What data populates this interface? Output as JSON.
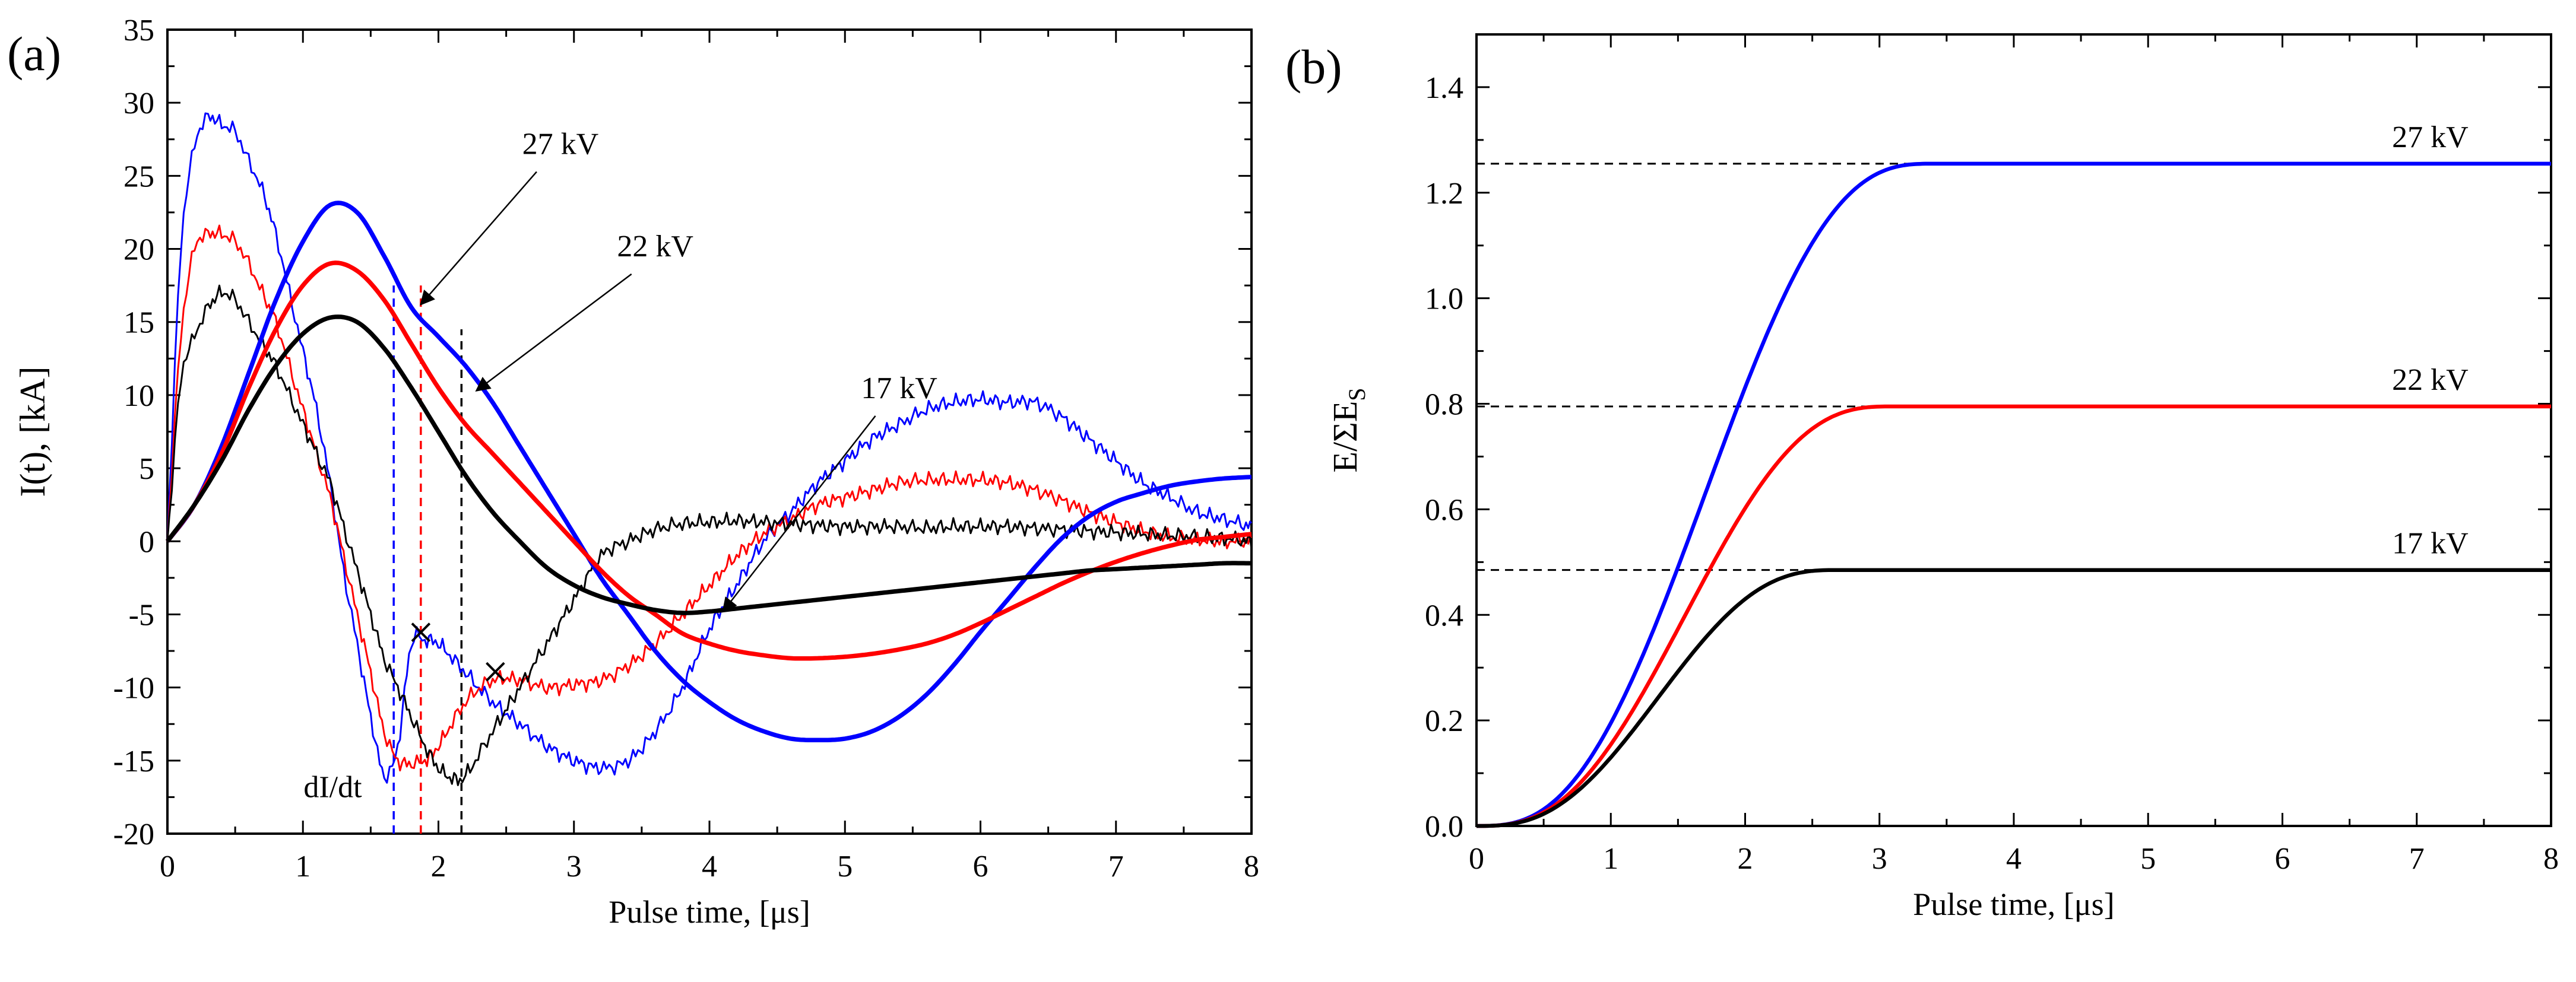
{
  "chart_data": [
    {
      "panel_label": "(a)",
      "type": "line",
      "xlabel": "Pulse time, [μs]",
      "ylabel": "I(t), [kA]",
      "xlim": [
        0,
        8
      ],
      "ylim": [
        -20,
        35
      ],
      "xticks": [
        0,
        1,
        2,
        3,
        4,
        5,
        6,
        7,
        8
      ],
      "yticks": [
        -20,
        -15,
        -10,
        -5,
        0,
        5,
        10,
        15,
        20,
        25,
        30,
        35
      ],
      "series": [
        {
          "name": "27 kV",
          "color": "#0000ff",
          "style": "thick",
          "x": [
            0,
            0.2,
            0.4,
            0.6,
            0.8,
            1.0,
            1.2,
            1.4,
            1.6,
            1.8,
            2.0,
            2.2,
            2.4,
            2.6,
            2.8,
            3.0,
            3.2,
            3.4,
            3.6,
            3.8,
            4.0,
            4.2,
            4.4,
            4.6,
            4.8,
            5.0,
            5.2,
            5.4,
            5.6,
            5.8,
            6.0,
            6.2,
            6.4,
            6.6,
            6.8,
            7.0,
            7.2,
            7.4,
            7.6,
            7.8,
            8.0
          ],
          "y": [
            0,
            2.5,
            6.5,
            11.5,
            16.5,
            20.5,
            23,
            22.5,
            19.5,
            16,
            14,
            12,
            9.5,
            6.5,
            3.5,
            0.5,
            -2.5,
            -5,
            -7.5,
            -9.5,
            -11,
            -12.2,
            -13,
            -13.5,
            -13.6,
            -13.5,
            -13,
            -12,
            -10.5,
            -8.5,
            -6.2,
            -4,
            -1.8,
            0.2,
            1.7,
            2.7,
            3.3,
            3.8,
            4.1,
            4.3,
            4.4
          ]
        },
        {
          "name": "22 kV",
          "color": "#ff0000",
          "style": "thick",
          "x": [
            0,
            0.2,
            0.4,
            0.6,
            0.8,
            1.0,
            1.2,
            1.4,
            1.6,
            1.8,
            2.0,
            2.2,
            2.4,
            2.6,
            2.8,
            3.0,
            3.2,
            3.4,
            3.6,
            3.8,
            4.0,
            4.2,
            4.4,
            4.6,
            4.8,
            5.0,
            5.2,
            5.4,
            5.6,
            5.8,
            6.0,
            6.2,
            6.4,
            6.6,
            6.8,
            7.0,
            7.2,
            7.4,
            7.6,
            7.8,
            8.0
          ],
          "y": [
            0,
            2.5,
            6,
            10.5,
            14.5,
            17.5,
            19,
            18.5,
            16.5,
            13.5,
            10.5,
            8,
            6,
            4,
            2,
            0,
            -2,
            -3.7,
            -5,
            -6.3,
            -7,
            -7.5,
            -7.8,
            -8,
            -8,
            -7.9,
            -7.7,
            -7.4,
            -7,
            -6.4,
            -5.6,
            -4.7,
            -3.8,
            -2.9,
            -2.1,
            -1.4,
            -0.8,
            -0.3,
            0.1,
            0.3,
            0.5
          ]
        },
        {
          "name": "17 kV",
          "color": "#000000",
          "style": "thick",
          "x": [
            0,
            0.2,
            0.4,
            0.6,
            0.8,
            1.0,
            1.2,
            1.4,
            1.6,
            1.8,
            2.0,
            2.2,
            2.4,
            2.6,
            2.8,
            3.0,
            3.2,
            3.4,
            3.6,
            3.8,
            4.0,
            4.2,
            4.4,
            4.6,
            4.8,
            5.0,
            5.2,
            5.4,
            5.6,
            5.8,
            6.0,
            6.2,
            6.4,
            6.6,
            6.8,
            7.0,
            7.2,
            7.4,
            7.6,
            7.8,
            8.0
          ],
          "y": [
            0,
            2.5,
            5.5,
            9,
            12,
            14.2,
            15.3,
            15,
            13.2,
            10.5,
            7.5,
            4.5,
            2,
            0,
            -1.8,
            -3,
            -3.8,
            -4.3,
            -4.7,
            -4.9,
            -4.8,
            -4.6,
            -4.4,
            -4.2,
            -4,
            -3.8,
            -3.6,
            -3.4,
            -3.2,
            -3,
            -2.8,
            -2.6,
            -2.4,
            -2.2,
            -2,
            -1.9,
            -1.8,
            -1.7,
            -1.6,
            -1.5,
            -1.5
          ]
        },
        {
          "name": "27 kV (dI/dt)",
          "color": "#0000ff",
          "style": "thin",
          "x": [
            0,
            0.1,
            0.2,
            0.3,
            0.4,
            0.5,
            0.6,
            0.7,
            0.8,
            0.9,
            1.0,
            1.1,
            1.2,
            1.3,
            1.4,
            1.5,
            1.6,
            1.7,
            1.8,
            1.9,
            2.0,
            2.2,
            2.4,
            2.6,
            2.8,
            3.0,
            3.2,
            3.4,
            3.6,
            3.8,
            4.0,
            4.2,
            4.4,
            4.6,
            4.8,
            5.0,
            5.2,
            5.4,
            5.6,
            5.8,
            6.0,
            6.2,
            6.4,
            6.6,
            6.8,
            7.0,
            7.2,
            7.4,
            7.6,
            7.8,
            8.0
          ],
          "y": [
            0,
            20,
            27,
            29,
            28.5,
            28,
            26,
            24,
            21,
            17,
            13,
            9,
            4,
            -2,
            -7,
            -12,
            -16,
            -14,
            -7,
            -6.8,
            -7,
            -9,
            -11,
            -12.5,
            -14,
            -15,
            -15.5,
            -15,
            -13,
            -10,
            -6,
            -3,
            0,
            2,
            4,
            5.5,
            7,
            8,
            9,
            9.5,
            9.7,
            9.5,
            9.5,
            8.5,
            7,
            5.5,
            4,
            3,
            2,
            1.5,
            1
          ]
        },
        {
          "name": "22 kV (dI/dt)",
          "color": "#ff0000",
          "style": "thin",
          "x": [
            0,
            0.1,
            0.2,
            0.3,
            0.4,
            0.5,
            0.6,
            0.7,
            0.8,
            0.9,
            1.0,
            1.1,
            1.2,
            1.3,
            1.4,
            1.5,
            1.6,
            1.7,
            1.8,
            1.9,
            2.0,
            2.2,
            2.4,
            2.6,
            2.8,
            3.0,
            3.2,
            3.4,
            3.6,
            3.8,
            4.0,
            4.2,
            4.4,
            4.6,
            4.8,
            5.0,
            5.2,
            5.4,
            5.6,
            5.8,
            6.0,
            6.2,
            6.4,
            6.6,
            6.8,
            7.0,
            7.2,
            7.4,
            7.6,
            7.8,
            8.0
          ],
          "y": [
            0,
            14,
            20,
            21,
            21,
            20.5,
            19,
            17,
            15,
            12,
            9,
            6,
            3,
            -1,
            -5,
            -9,
            -13,
            -15,
            -15.2,
            -15,
            -14,
            -11,
            -9.5,
            -9.5,
            -10,
            -9.8,
            -9.5,
            -8.5,
            -7,
            -5,
            -3,
            -1,
            0.5,
            1.5,
            2.5,
            3,
            3.5,
            4,
            4.2,
            4.2,
            4.2,
            4,
            3.5,
            2.8,
            2,
            1.3,
            0.7,
            0.3,
            0.1,
            0,
            0
          ]
        },
        {
          "name": "17 kV (dI/dt)",
          "color": "#000000",
          "style": "thin",
          "x": [
            0,
            0.1,
            0.2,
            0.3,
            0.4,
            0.5,
            0.6,
            0.7,
            0.8,
            0.9,
            1.0,
            1.1,
            1.2,
            1.3,
            1.4,
            1.5,
            1.6,
            1.7,
            1.8,
            1.9,
            2.0,
            2.1,
            2.2,
            2.4,
            2.6,
            2.8,
            3.0,
            3.2,
            3.4,
            3.6,
            3.8,
            4.0,
            4.2,
            4.4,
            4.6,
            4.8,
            5.0,
            5.2,
            5.4,
            5.6,
            5.8,
            6.0,
            6.2,
            6.4,
            6.6,
            6.8,
            7.0,
            7.2,
            7.4,
            7.6,
            7.8,
            8.0
          ],
          "y": [
            0,
            11,
            14,
            16,
            17,
            16.5,
            15,
            13.5,
            12,
            10,
            8,
            6,
            4,
            1,
            -2,
            -5,
            -8,
            -10,
            -12,
            -14,
            -15.5,
            -16.2,
            -16,
            -13,
            -10,
            -7,
            -4,
            -1,
            0,
            0.8,
            1.2,
            1.3,
            1.4,
            1.3,
            1.2,
            1.1,
            1,
            1,
            1,
            0.9,
            1,
            1,
            1,
            0.9,
            0.8,
            0.7,
            0.6,
            0.5,
            0.4,
            0.3,
            0.2,
            0
          ]
        }
      ],
      "vlines": [
        {
          "x": 1.67,
          "y_top": 17.5,
          "color": "#0000ff"
        },
        {
          "x": 1.87,
          "y_top": 17.5,
          "color": "#ff0000"
        },
        {
          "x": 2.17,
          "y_top": 14.5,
          "color": "#000000"
        }
      ],
      "markers": [
        {
          "x": 1.87,
          "y": -6.5,
          "symbol": "×"
        },
        {
          "x": 2.42,
          "y": -9.2,
          "symbol": "×"
        }
      ],
      "annotations": [
        {
          "text": "27 kV",
          "tx": 2.9,
          "ty": 26.5,
          "ax": 1.87,
          "ay": 16.2
        },
        {
          "text": "22 kV",
          "tx": 3.6,
          "ty": 19.5,
          "ax": 2.28,
          "ay": 10.3
        },
        {
          "text": "17 kV",
          "tx": 5.4,
          "ty": 9.8,
          "ax": 4.1,
          "ay": -4.8
        },
        {
          "text": "dI/dt",
          "tx": 1.22,
          "ty": -17.5
        }
      ]
    },
    {
      "panel_label": "(b)",
      "type": "line",
      "xlabel": "Pulse time, [μs]",
      "ylabel": "E/ΣE",
      "ylabel_sub": "S",
      "xlim": [
        0,
        8
      ],
      "ylim": [
        0,
        1.5
      ],
      "xticks": [
        0,
        1,
        2,
        3,
        4,
        5,
        6,
        7,
        8
      ],
      "yticks": [
        0.0,
        0.2,
        0.4,
        0.6,
        0.8,
        1.0,
        1.2,
        1.4
      ],
      "ytick_labels": [
        "0.0",
        "0.2",
        "0.4",
        "0.6",
        "0.8",
        "1.0",
        "1.2",
        "1.4"
      ],
      "series": [
        {
          "name": "27 kV",
          "color": "#0000ff",
          "saturation": 1.255,
          "rise_end": 3.4,
          "label_x": 7.1
        },
        {
          "name": "22 kV",
          "color": "#ff0000",
          "saturation": 0.795,
          "rise_end": 3.1,
          "label_x": 7.1
        },
        {
          "name": "17 kV",
          "color": "#000000",
          "saturation": 0.485,
          "rise_end": 2.7,
          "label_x": 7.1
        }
      ],
      "hlines": [
        1.255,
        0.795,
        0.485
      ]
    }
  ]
}
